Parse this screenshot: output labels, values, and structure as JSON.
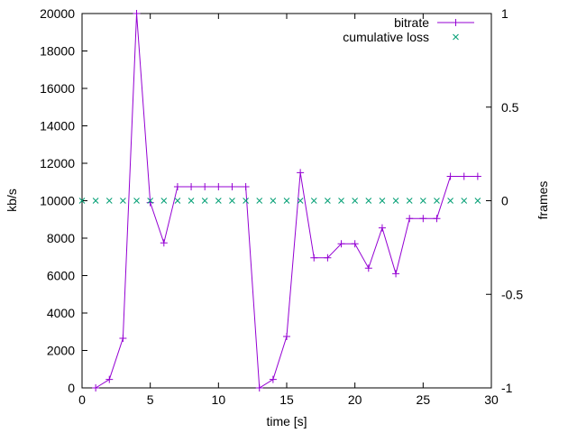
{
  "chart_data": {
    "type": "line",
    "xlabel": "time [s]",
    "ylabel": "kb/s",
    "y2label": "frames",
    "xlim": [
      0,
      30
    ],
    "ylim": [
      0,
      20000
    ],
    "y2lim": [
      -1,
      1
    ],
    "xticks": [
      0,
      5,
      10,
      15,
      20,
      25,
      30
    ],
    "yticks": [
      0,
      2000,
      4000,
      6000,
      8000,
      10000,
      12000,
      14000,
      16000,
      18000,
      20000
    ],
    "y2ticks": [
      -1,
      -0.5,
      0,
      0.5,
      1
    ],
    "grid": false,
    "legend_position": "top-right",
    "series": [
      {
        "name": "bitrate",
        "axis": "y",
        "style": "linespoints",
        "marker": "plus",
        "color": "#9400d3",
        "x": [
          1,
          2,
          3,
          4,
          5,
          6,
          7,
          8,
          9,
          10,
          11,
          12,
          13,
          14,
          15,
          16,
          17,
          18,
          19,
          20,
          21,
          22,
          23,
          24,
          25,
          26,
          27,
          28,
          29
        ],
        "y": [
          0,
          450,
          2650,
          20000,
          9900,
          7750,
          10750,
          10750,
          10750,
          10750,
          10750,
          10750,
          0,
          450,
          2750,
          11500,
          6950,
          6950,
          7700,
          7700,
          6400,
          8550,
          6100,
          9050,
          9050,
          9050,
          11300,
          11300,
          11300
        ]
      },
      {
        "name": "cumulative loss",
        "axis": "y2",
        "style": "points",
        "marker": "cross",
        "color": "#009e73",
        "x": [
          0,
          1,
          2,
          3,
          4,
          5,
          6,
          7,
          8,
          9,
          10,
          11,
          12,
          13,
          14,
          15,
          16,
          17,
          18,
          19,
          20,
          21,
          22,
          23,
          24,
          25,
          26,
          27,
          28,
          29
        ],
        "y": [
          0,
          0,
          0,
          0,
          0,
          0,
          0,
          0,
          0,
          0,
          0,
          0,
          0,
          0,
          0,
          0,
          0,
          0,
          0,
          0,
          0,
          0,
          0,
          0,
          0,
          0,
          0,
          0,
          0,
          0
        ]
      }
    ]
  }
}
